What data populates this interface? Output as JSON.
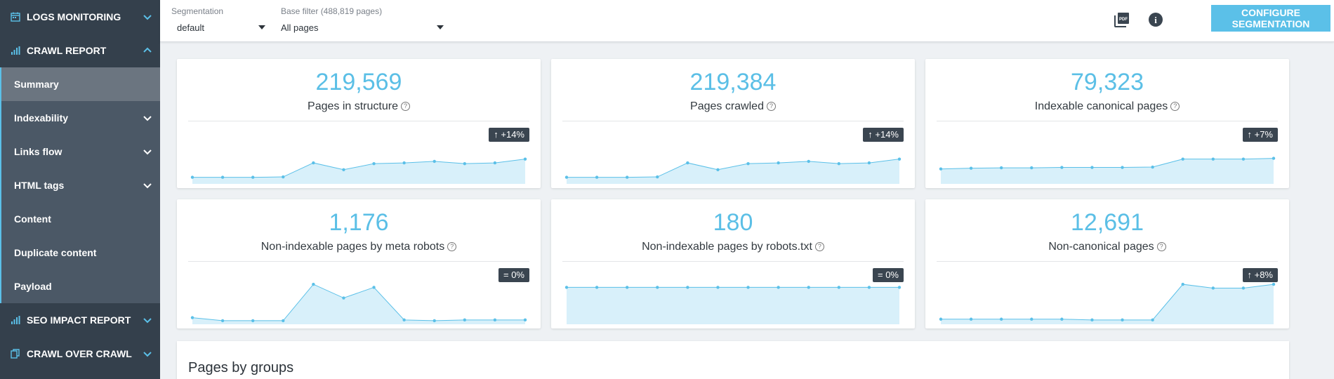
{
  "sidebar": {
    "items": [
      {
        "label": "LOGS MONITORING",
        "type": "section",
        "icon": "calendar-icon",
        "chevron": "down"
      },
      {
        "label": "CRAWL REPORT",
        "type": "section",
        "icon": "bar-chart-icon",
        "chevron": "up"
      },
      {
        "label": "Summary",
        "type": "sub",
        "active": true
      },
      {
        "label": "Indexability",
        "type": "sub",
        "chevron": "down"
      },
      {
        "label": "Links flow",
        "type": "sub",
        "chevron": "down"
      },
      {
        "label": "HTML tags",
        "type": "sub",
        "chevron": "down"
      },
      {
        "label": "Content",
        "type": "sub"
      },
      {
        "label": "Duplicate content",
        "type": "sub"
      },
      {
        "label": "Payload",
        "type": "sub"
      },
      {
        "label": "SEO IMPACT REPORT",
        "type": "section",
        "icon": "bar-chart-icon",
        "chevron": "down"
      },
      {
        "label": "CRAWL OVER CRAWL",
        "type": "section",
        "icon": "copy-icon",
        "chevron": "down"
      }
    ]
  },
  "topbar": {
    "segmentation_label": "Segmentation",
    "segmentation_value": "default",
    "filter_label": "Base filter (488,819 pages)",
    "filter_value": "All pages",
    "pdf_icon_text": "PDF",
    "info_icon_text": "i",
    "config_button": "CONFIGURE SEGMENTATION"
  },
  "cards": [
    {
      "value": "219,569",
      "label": "Pages in structure",
      "badge": "↑ +14%",
      "spark": [
        0.1,
        0.1,
        0.1,
        0.11,
        0.48,
        0.3,
        0.46,
        0.48,
        0.52,
        0.46,
        0.48,
        0.58
      ]
    },
    {
      "value": "219,384",
      "label": "Pages crawled",
      "badge": "↑ +14%",
      "spark": [
        0.1,
        0.1,
        0.1,
        0.11,
        0.48,
        0.3,
        0.46,
        0.48,
        0.52,
        0.46,
        0.48,
        0.58
      ]
    },
    {
      "value": "79,323",
      "label": "Indexable canonical pages",
      "badge": "↑ +7%",
      "spark": [
        0.32,
        0.34,
        0.35,
        0.35,
        0.36,
        0.36,
        0.36,
        0.37,
        0.58,
        0.58,
        0.58,
        0.6
      ]
    },
    {
      "value": "1,176",
      "label": "Non-indexable pages by meta robots",
      "badge": "= 0%",
      "spark": [
        0.1,
        0.02,
        0.02,
        0.02,
        0.98,
        0.62,
        0.9,
        0.04,
        0.02,
        0.04,
        0.04,
        0.04
      ]
    },
    {
      "value": "180",
      "label": "Non-indexable pages by robots.txt",
      "badge": "= 0%",
      "spark": [
        0.9,
        0.9,
        0.9,
        0.9,
        0.9,
        0.9,
        0.9,
        0.9,
        0.9,
        0.9,
        0.9,
        0.9
      ]
    },
    {
      "value": "12,691",
      "label": "Non-canonical pages",
      "badge": "↑ +8%",
      "spark": [
        0.06,
        0.06,
        0.06,
        0.06,
        0.06,
        0.04,
        0.04,
        0.04,
        0.98,
        0.88,
        0.88,
        0.98
      ]
    }
  ],
  "help_icon_text": "?",
  "groups_title": "Pages by groups",
  "colors": {
    "accent": "#5bc0e8",
    "sidebar": "#34404c",
    "badge": "#3a4550",
    "spark_fill": "#d8f0fa"
  }
}
